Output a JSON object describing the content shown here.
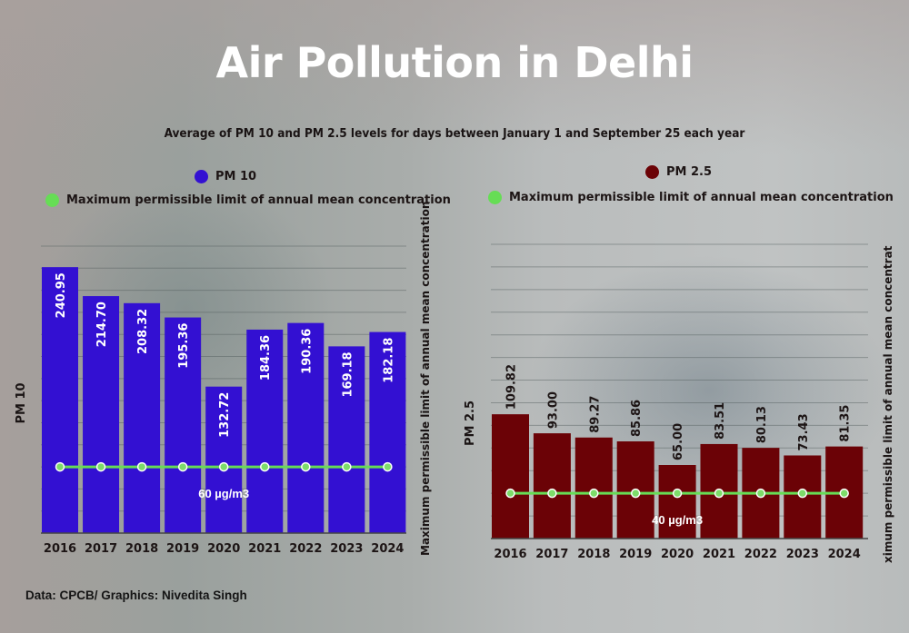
{
  "title": "Air Pollution in Delhi",
  "subtitle": "Average of PM 10 and PM 2.5 levels for days between January 1 and September 25 each year",
  "source": "Data: CPCB/ Graphics: Nivedita Singh",
  "colors": {
    "pm10": "#3310d2",
    "pm25": "#6b0206",
    "limit": "#66dd55",
    "limit_marker": "#7ddc6a"
  },
  "chart_data": [
    {
      "type": "bar",
      "title": "PM 10",
      "legend": [
        {
          "label": "PM 10",
          "color": "#3310d2"
        },
        {
          "label": "Maximum permissible limit of annual mean concentration",
          "color": "#66dd55"
        }
      ],
      "categories": [
        "2016",
        "2017",
        "2018",
        "2019",
        "2020",
        "2021",
        "2022",
        "2023",
        "2024"
      ],
      "series": [
        {
          "name": "PM 10",
          "values": [
            240.95,
            214.7,
            208.32,
            195.36,
            132.72,
            184.36,
            190.36,
            169.18,
            182.18
          ],
          "labels": [
            "240.95",
            "214.70",
            "208.32",
            "195.36",
            "132.72",
            "184.36",
            "190.36",
            "169.18",
            "182.18"
          ]
        },
        {
          "name": "Maximum permissible limit of annual mean concentration",
          "values": [
            60,
            60,
            60,
            60,
            60,
            60,
            60,
            60,
            60
          ],
          "type": "line"
        }
      ],
      "limit_label": "60 µg/m3",
      "ylabel": "PM 10",
      "y2label": "Maximum permissible limit of annual mean concentration",
      "xlabel": "",
      "ylim": [
        0,
        260
      ],
      "grid": true,
      "gridline_step": 20,
      "legend_position": "top"
    },
    {
      "type": "bar",
      "title": "PM 2.5",
      "legend": [
        {
          "label": "PM 2.5",
          "color": "#6b0206"
        },
        {
          "label": "Maximum permissible limit of annual mean concentration",
          "color": "#66dd55"
        }
      ],
      "categories": [
        "2016",
        "2017",
        "2018",
        "2019",
        "2020",
        "2021",
        "2022",
        "2023",
        "2024"
      ],
      "series": [
        {
          "name": "PM 2.5",
          "values": [
            109.82,
            93.0,
            89.27,
            85.86,
            65.0,
            83.51,
            80.13,
            73.43,
            81.35
          ],
          "labels": [
            "109.82",
            "93.00",
            "89.27",
            "85.86",
            "65.00",
            "83.51",
            "80.13",
            "73.43",
            "81.35"
          ]
        },
        {
          "name": "Maximum permissible limit of annual mean concentration",
          "values": [
            40,
            40,
            40,
            40,
            40,
            40,
            40,
            40,
            40
          ],
          "type": "line"
        }
      ],
      "limit_label": "40 µg/m3",
      "ylabel": "PM 2.5",
      "y2label": "ximum permissible limit of annual mean concentrat",
      "xlabel": "",
      "ylim": [
        0,
        260
      ],
      "grid": true,
      "gridline_step": 20,
      "legend_position": "top"
    }
  ]
}
